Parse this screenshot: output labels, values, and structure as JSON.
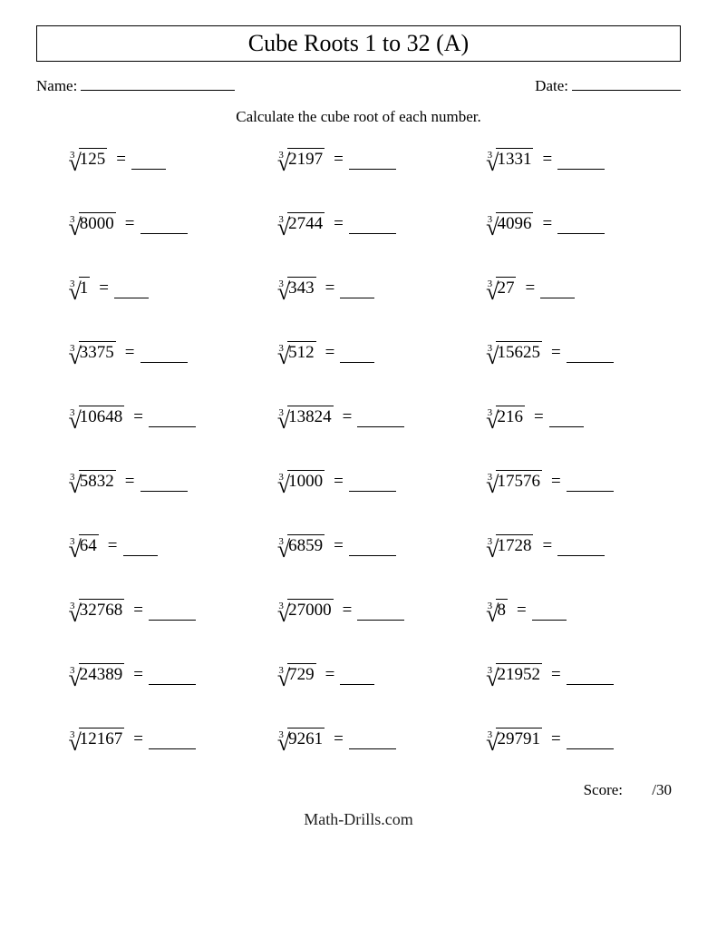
{
  "title": "Cube Roots 1 to 32 (A)",
  "name_label": "Name:",
  "date_label": "Date:",
  "instruction": "Calculate the cube root of each number.",
  "root_index": "3",
  "equals": "=",
  "score_label": "Score:",
  "score_total": "/30",
  "footer": "Math-Drills.com",
  "answer_line_width_short": 38,
  "answer_line_width_long": 52,
  "problems": [
    {
      "radicand": "125",
      "blank": "short"
    },
    {
      "radicand": "2197",
      "blank": "long"
    },
    {
      "radicand": "1331",
      "blank": "long"
    },
    {
      "radicand": "8000",
      "blank": "long"
    },
    {
      "radicand": "2744",
      "blank": "long"
    },
    {
      "radicand": "4096",
      "blank": "long"
    },
    {
      "radicand": "1",
      "blank": "short"
    },
    {
      "radicand": "343",
      "blank": "short"
    },
    {
      "radicand": "27",
      "blank": "short"
    },
    {
      "radicand": "3375",
      "blank": "long"
    },
    {
      "radicand": "512",
      "blank": "short"
    },
    {
      "radicand": "15625",
      "blank": "long"
    },
    {
      "radicand": "10648",
      "blank": "long"
    },
    {
      "radicand": "13824",
      "blank": "long"
    },
    {
      "radicand": "216",
      "blank": "short"
    },
    {
      "radicand": "5832",
      "blank": "long"
    },
    {
      "radicand": "1000",
      "blank": "long"
    },
    {
      "radicand": "17576",
      "blank": "long"
    },
    {
      "radicand": "64",
      "blank": "short"
    },
    {
      "radicand": "6859",
      "blank": "long"
    },
    {
      "radicand": "1728",
      "blank": "long"
    },
    {
      "radicand": "32768",
      "blank": "long"
    },
    {
      "radicand": "27000",
      "blank": "long"
    },
    {
      "radicand": "8",
      "blank": "short"
    },
    {
      "radicand": "24389",
      "blank": "long"
    },
    {
      "radicand": "729",
      "blank": "short"
    },
    {
      "radicand": "21952",
      "blank": "long"
    },
    {
      "radicand": "12167",
      "blank": "long"
    },
    {
      "radicand": "9261",
      "blank": "long"
    },
    {
      "radicand": "29791",
      "blank": "long"
    }
  ]
}
